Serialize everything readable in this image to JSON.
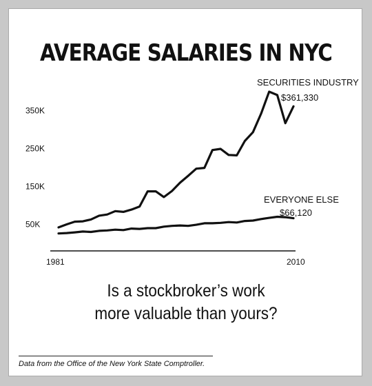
{
  "title": "AVERAGE SALARIES IN NYC",
  "question": {
    "line1": "Is a stockbroker’s work",
    "line2": "more valuable than yours?"
  },
  "source": "Data from the Office of the New York State Comptroller.",
  "chart_data": {
    "type": "line",
    "title": "AVERAGE SALARIES IN NYC",
    "xlabel": "",
    "ylabel": "",
    "xlim": [
      1981,
      2010
    ],
    "ylim": [
      0,
      400000
    ],
    "x_tick_labels": [
      {
        "value": 1981,
        "label": "1981"
      },
      {
        "value": 2010,
        "label": "2010"
      }
    ],
    "y_tick_labels": [
      {
        "value": 50000,
        "label": "50K"
      },
      {
        "value": 150000,
        "label": "150K"
      },
      {
        "value": 250000,
        "label": "250K"
      },
      {
        "value": 350000,
        "label": "350K"
      }
    ],
    "grid": false,
    "line_color": "#111111",
    "x": [
      1981,
      1982,
      1983,
      1984,
      1985,
      1986,
      1987,
      1988,
      1989,
      1990,
      1991,
      1992,
      1993,
      1994,
      1995,
      1996,
      1997,
      1998,
      1999,
      2000,
      2001,
      2002,
      2003,
      2004,
      2005,
      2006,
      2007,
      2008,
      2009,
      2010
    ],
    "series": [
      {
        "name": "SECURITIES INDUSTRY",
        "label_value": "$361,330",
        "values": [
          42000,
          50000,
          57000,
          58000,
          63000,
          73000,
          76000,
          85000,
          83000,
          89000,
          97000,
          137000,
          137000,
          122000,
          138000,
          160000,
          178000,
          197000,
          199000,
          246000,
          249000,
          233000,
          232000,
          270000,
          293000,
          342000,
          400000,
          391000,
          317000,
          361330
        ]
      },
      {
        "name": "EVERYONE ELSE",
        "label_value": "$66,120",
        "values": [
          26000,
          27000,
          29000,
          31000,
          30000,
          33000,
          34000,
          36000,
          35000,
          39000,
          38000,
          40000,
          40000,
          44000,
          46000,
          47000,
          46000,
          49000,
          53000,
          53000,
          54000,
          56000,
          55000,
          59000,
          60000,
          64000,
          67000,
          70000,
          69000,
          66120
        ]
      }
    ]
  }
}
